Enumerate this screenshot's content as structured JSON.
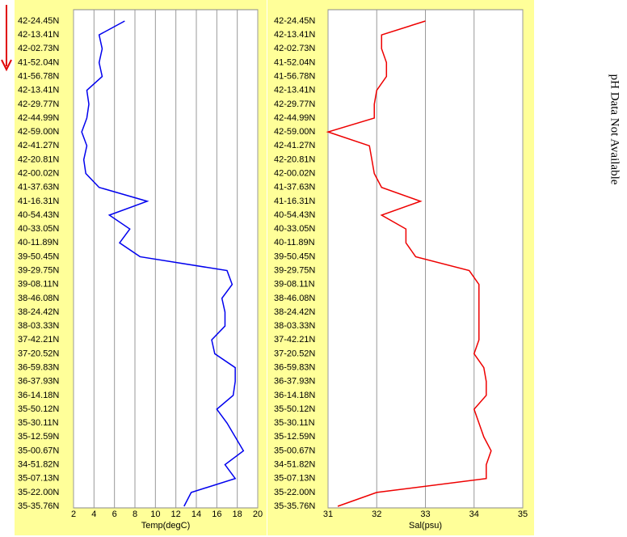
{
  "chart_data": [
    {
      "type": "line",
      "categories": [
        "42-24.45N",
        "42-13.41N",
        "42-02.73N",
        "41-52.04N",
        "41-56.78N",
        "42-13.41N",
        "42-29.77N",
        "42-44.99N",
        "42-59.00N",
        "42-41.27N",
        "42-20.81N",
        "42-00.02N",
        "41-37.63N",
        "41-16.31N",
        "40-54.43N",
        "40-33.05N",
        "40-11.89N",
        "39-50.45N",
        "39-29.75N",
        "39-08.11N",
        "38-46.08N",
        "38-24.42N",
        "38-03.33N",
        "37-42.21N",
        "37-20.52N",
        "36-59.83N",
        "36-37.93N",
        "36-14.18N",
        "35-50.12N",
        "35-30.11N",
        "35-12.59N",
        "35-00.67N",
        "34-51.82N",
        "35-07.13N",
        "35-22.00N",
        "35-35.76N"
      ],
      "values": [
        7.0,
        4.5,
        4.8,
        4.5,
        4.8,
        3.3,
        3.5,
        3.3,
        2.8,
        3.3,
        3.0,
        3.2,
        4.5,
        9.2,
        5.5,
        7.5,
        6.5,
        8.5,
        17.0,
        17.5,
        16.5,
        16.8,
        16.8,
        15.5,
        15.8,
        17.8,
        17.8,
        17.6,
        16.0,
        17.0,
        17.8,
        18.6,
        16.8,
        17.8,
        13.5,
        12.8
      ],
      "color": "#0000ee",
      "xlabel": "Temp(degC)",
      "xlim": [
        2,
        20
      ],
      "xticks": [
        2,
        4,
        6,
        8,
        10,
        12,
        14,
        16,
        18,
        20
      ],
      "grid": true
    },
    {
      "type": "line",
      "categories": [
        "42-24.45N",
        "42-13.41N",
        "42-02.73N",
        "41-52.04N",
        "41-56.78N",
        "42-13.41N",
        "42-29.77N",
        "42-44.99N",
        "42-59.00N",
        "42-41.27N",
        "42-20.81N",
        "42-00.02N",
        "41-37.63N",
        "41-16.31N",
        "40-54.43N",
        "40-33.05N",
        "40-11.89N",
        "39-50.45N",
        "39-29.75N",
        "39-08.11N",
        "38-46.08N",
        "38-24.42N",
        "38-03.33N",
        "37-42.21N",
        "37-20.52N",
        "36-59.83N",
        "36-37.93N",
        "36-14.18N",
        "35-50.12N",
        "35-30.11N",
        "35-12.59N",
        "35-00.67N",
        "34-51.82N",
        "35-07.13N",
        "35-22.00N",
        "35-35.76N"
      ],
      "values": [
        33.0,
        32.1,
        32.1,
        32.2,
        32.2,
        32.0,
        31.95,
        31.95,
        31.0,
        31.85,
        31.9,
        31.95,
        32.1,
        32.9,
        32.1,
        32.6,
        32.6,
        32.8,
        33.9,
        34.1,
        34.1,
        34.1,
        34.1,
        34.1,
        34.0,
        34.2,
        34.25,
        34.25,
        34.0,
        34.1,
        34.2,
        34.35,
        34.25,
        34.25,
        32.0,
        31.2
      ],
      "color": "#ee0000",
      "xlabel": "Sal(psu)",
      "xlim": [
        31,
        35
      ],
      "xticks": [
        31,
        32,
        33,
        34,
        35
      ],
      "grid": true
    }
  ],
  "side_note": "pH Data Not Available"
}
